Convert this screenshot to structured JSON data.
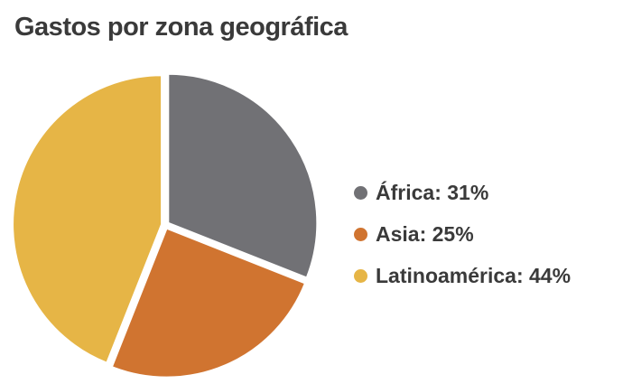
{
  "chart_data": {
    "type": "pie",
    "title": "Gastos por zona geográfica",
    "slices": [
      {
        "label": "África",
        "value": 31,
        "display": "África: 31%",
        "color": "#717175"
      },
      {
        "label": "Asia",
        "value": 25,
        "display": "Asia: 25%",
        "color": "#d07430"
      },
      {
        "label": "Latinoamérica",
        "value": 44,
        "display": "Latinoamérica: 44%",
        "color": "#e6b546"
      }
    ],
    "legend_position": "right"
  }
}
